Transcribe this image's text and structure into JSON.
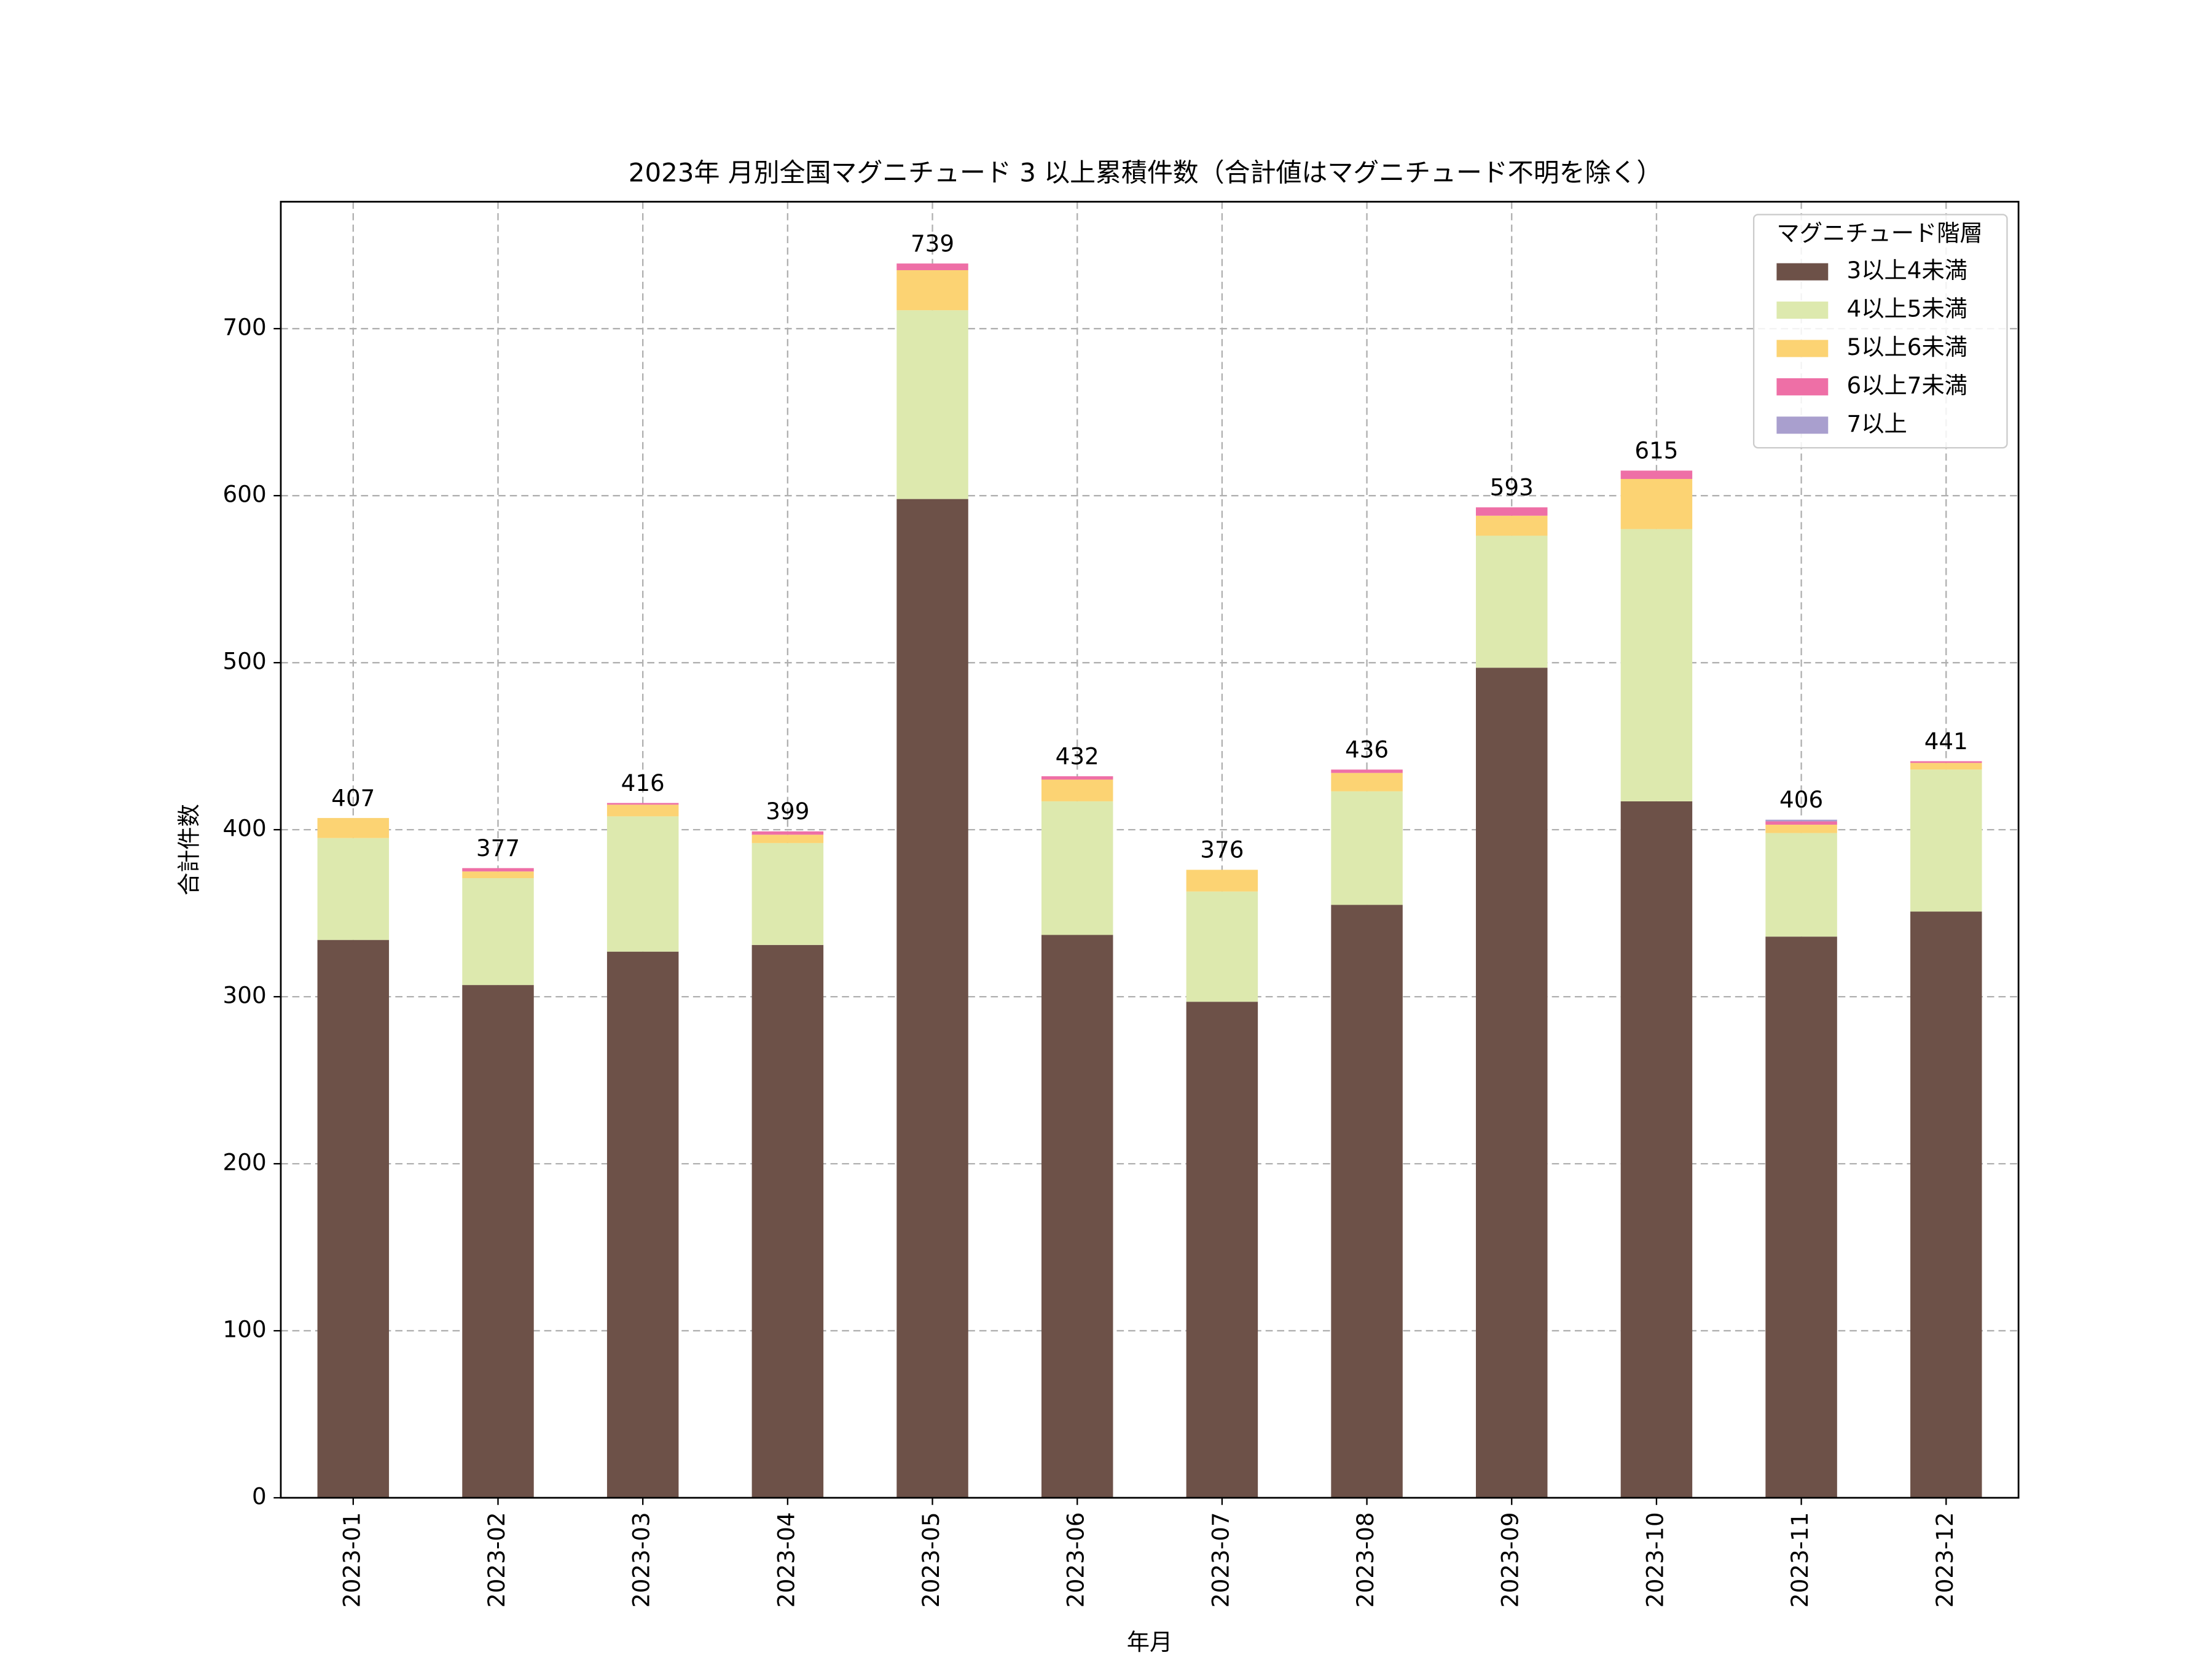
{
  "chart_data": {
    "type": "stacked_bar",
    "title": "2023年 月別全国マグニチュード 3 以上累積件数（合計値はマグニチュード不明を除く）",
    "x_label": "年月",
    "y_label": "合計件数",
    "categories": [
      "2023-01",
      "2023-02",
      "2023-03",
      "2023-04",
      "2023-05",
      "2023-06",
      "2023-07",
      "2023-08",
      "2023-09",
      "2023-10",
      "2023-11",
      "2023-12"
    ],
    "series": [
      {
        "name": "3以上4未満",
        "color": "#6d5148",
        "values": [
          334,
          307,
          327,
          331,
          598,
          337,
          297,
          355,
          497,
          417,
          336,
          351
        ]
      },
      {
        "name": "4以上5未満",
        "color": "#dde9ae",
        "values": [
          61,
          64,
          81,
          61,
          113,
          80,
          66,
          68,
          79,
          163,
          62,
          85
        ]
      },
      {
        "name": "5以上6未満",
        "color": "#fcd373",
        "values": [
          12,
          4,
          7,
          5,
          24,
          13,
          13,
          11,
          12,
          30,
          5,
          4
        ]
      },
      {
        "name": "6以上7未満",
        "color": "#ee6fa6",
        "values": [
          0,
          2,
          1,
          2,
          4,
          2,
          0,
          2,
          5,
          5,
          2,
          1
        ]
      },
      {
        "name": "7以上",
        "color": "#a99fce",
        "values": [
          0,
          0,
          0,
          0,
          0,
          0,
          0,
          0,
          0,
          0,
          1,
          0
        ]
      }
    ],
    "totals": [
      407,
      377,
      416,
      399,
      739,
      432,
      376,
      436,
      593,
      615,
      406,
      441
    ],
    "legend_title": "マグニチュード階層",
    "legend": "upper right",
    "ylim": [
      0,
      776
    ],
    "yticks": [
      0,
      100,
      200,
      300,
      400,
      500,
      600,
      700
    ],
    "grid": true
  }
}
